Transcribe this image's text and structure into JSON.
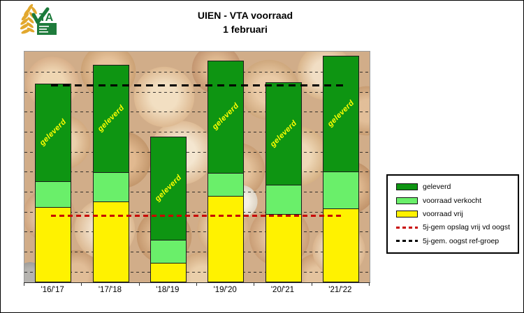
{
  "title": {
    "line1": "UIEN - VTA voorraad",
    "line2": "1 februari"
  },
  "logo": {
    "letters": "TA"
  },
  "chart_data": {
    "type": "bar",
    "stacked": true,
    "title": "UIEN - VTA voorraad",
    "subtitle": "1 februari",
    "categories": [
      "'16/'17",
      "'17/'18",
      "'18/'19",
      "'19/'20",
      "'20/'21",
      "'21/'22"
    ],
    "series": [
      {
        "name": "voorraad vrij",
        "color": "#FFF200",
        "values": [
          32.6,
          35.0,
          8.5,
          37.5,
          29.6,
          32.0
        ]
      },
      {
        "name": "voorraad verkocht",
        "color": "#6AEF6A",
        "values": [
          11.2,
          12.8,
          10.0,
          10.0,
          12.7,
          16.0
        ]
      },
      {
        "name": "geleverd",
        "color": "#0E9512",
        "values": [
          42.3,
          46.4,
          44.7,
          48.6,
          44.4,
          50.2
        ]
      }
    ],
    "bar_label": {
      "text": "geleverd",
      "color": "#FFFF00"
    },
    "ref_lines": [
      {
        "name": "5j-gem opslag vrij vd oogst",
        "value": 28.9,
        "color": "#C80000"
      },
      {
        "name": "5j-gem. oogst ref-groep",
        "value": 85.3,
        "color": "#000000"
      }
    ],
    "ylim": [
      0,
      100
    ],
    "y_axis_labels_visible": false,
    "gridlines": 11,
    "legend_position": "right"
  },
  "legend": {
    "items": [
      {
        "label": "geleverd",
        "swatch": "box",
        "color": "#0E9512"
      },
      {
        "label": "voorraad verkocht",
        "swatch": "box",
        "color": "#6AEF6A"
      },
      {
        "label": "voorraad vrij",
        "swatch": "box",
        "color": "#FFF200"
      },
      {
        "label": "5j-gem opslag vrij vd oogst",
        "swatch": "dashes",
        "color": "#C80000"
      },
      {
        "label": "5j-gem. oogst ref-groep",
        "swatch": "dashes",
        "color": "#000000"
      }
    ]
  }
}
